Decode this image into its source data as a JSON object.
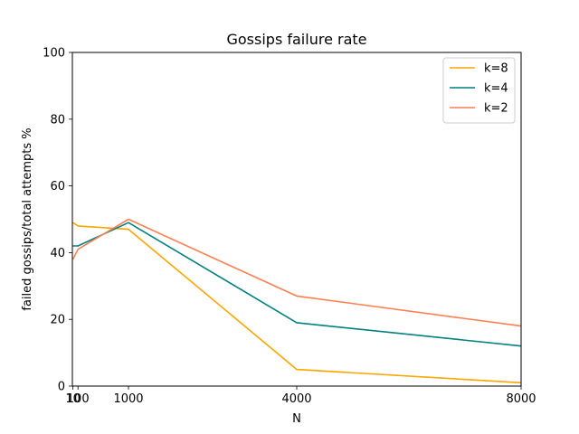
{
  "chart_data": {
    "type": "line",
    "title": "Gossips failure rate",
    "xlabel": "N",
    "ylabel": "failed gossips/total attempts %",
    "xlim": [
      0,
      8000
    ],
    "ylim": [
      0,
      100
    ],
    "xticks": [
      10,
      100,
      1000,
      4000,
      8000
    ],
    "xtick_labels": [
      "10",
      "100",
      "1000",
      "4000",
      "8000"
    ],
    "yticks": [
      0,
      20,
      40,
      60,
      80,
      100
    ],
    "ytick_labels": [
      "0",
      "20",
      "40",
      "60",
      "80",
      "100"
    ],
    "x": [
      10,
      100,
      1000,
      4000,
      8000
    ],
    "series": [
      {
        "name": "k=8",
        "color": "#ffa500",
        "values": [
          49,
          48,
          47,
          5,
          1
        ]
      },
      {
        "name": "k=4",
        "color": "#008080",
        "values": [
          42,
          42,
          49,
          19,
          12
        ]
      },
      {
        "name": "k=2",
        "color": "#ff7f50",
        "values": [
          38,
          41,
          50,
          27,
          18
        ]
      }
    ],
    "legend_position": "upper right",
    "grid": false
  }
}
